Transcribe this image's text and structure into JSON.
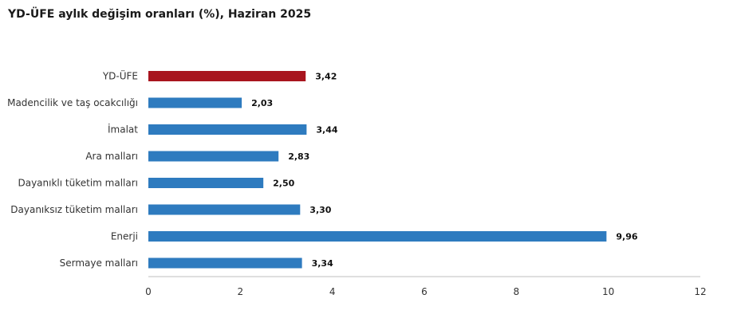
{
  "chart_data": {
    "type": "bar",
    "orientation": "horizontal",
    "title": "YD-ÜFE aylık değişim oranları (%), Haziran 2025",
    "xlabel": "",
    "ylabel": "",
    "categories": [
      "YD-ÜFE",
      "Madencilik ve taş ocakcılığı",
      "İmalat",
      "Ara malları",
      "Dayanıklı tüketim malları",
      "Dayanıksız tüketim malları",
      "Enerji",
      "Sermaye malları"
    ],
    "values": [
      3.42,
      2.03,
      3.44,
      2.83,
      2.5,
      3.3,
      9.96,
      3.34
    ],
    "value_labels": [
      "3,42",
      "2,03",
      "3,44",
      "2,83",
      "2,50",
      "3,30",
      "9,96",
      "3,34"
    ],
    "xlim": [
      0,
      12
    ],
    "ticks": [
      0,
      2,
      4,
      6,
      8,
      10,
      12
    ],
    "tick_labels": [
      "0",
      "2",
      "4",
      "6",
      "8",
      "10",
      "12"
    ],
    "grid": false,
    "legend": "none",
    "colors": {
      "highlight": "#a8141e",
      "default": "#2e7bbf",
      "axis": "#bfbfbf"
    },
    "highlight_index": 0
  }
}
